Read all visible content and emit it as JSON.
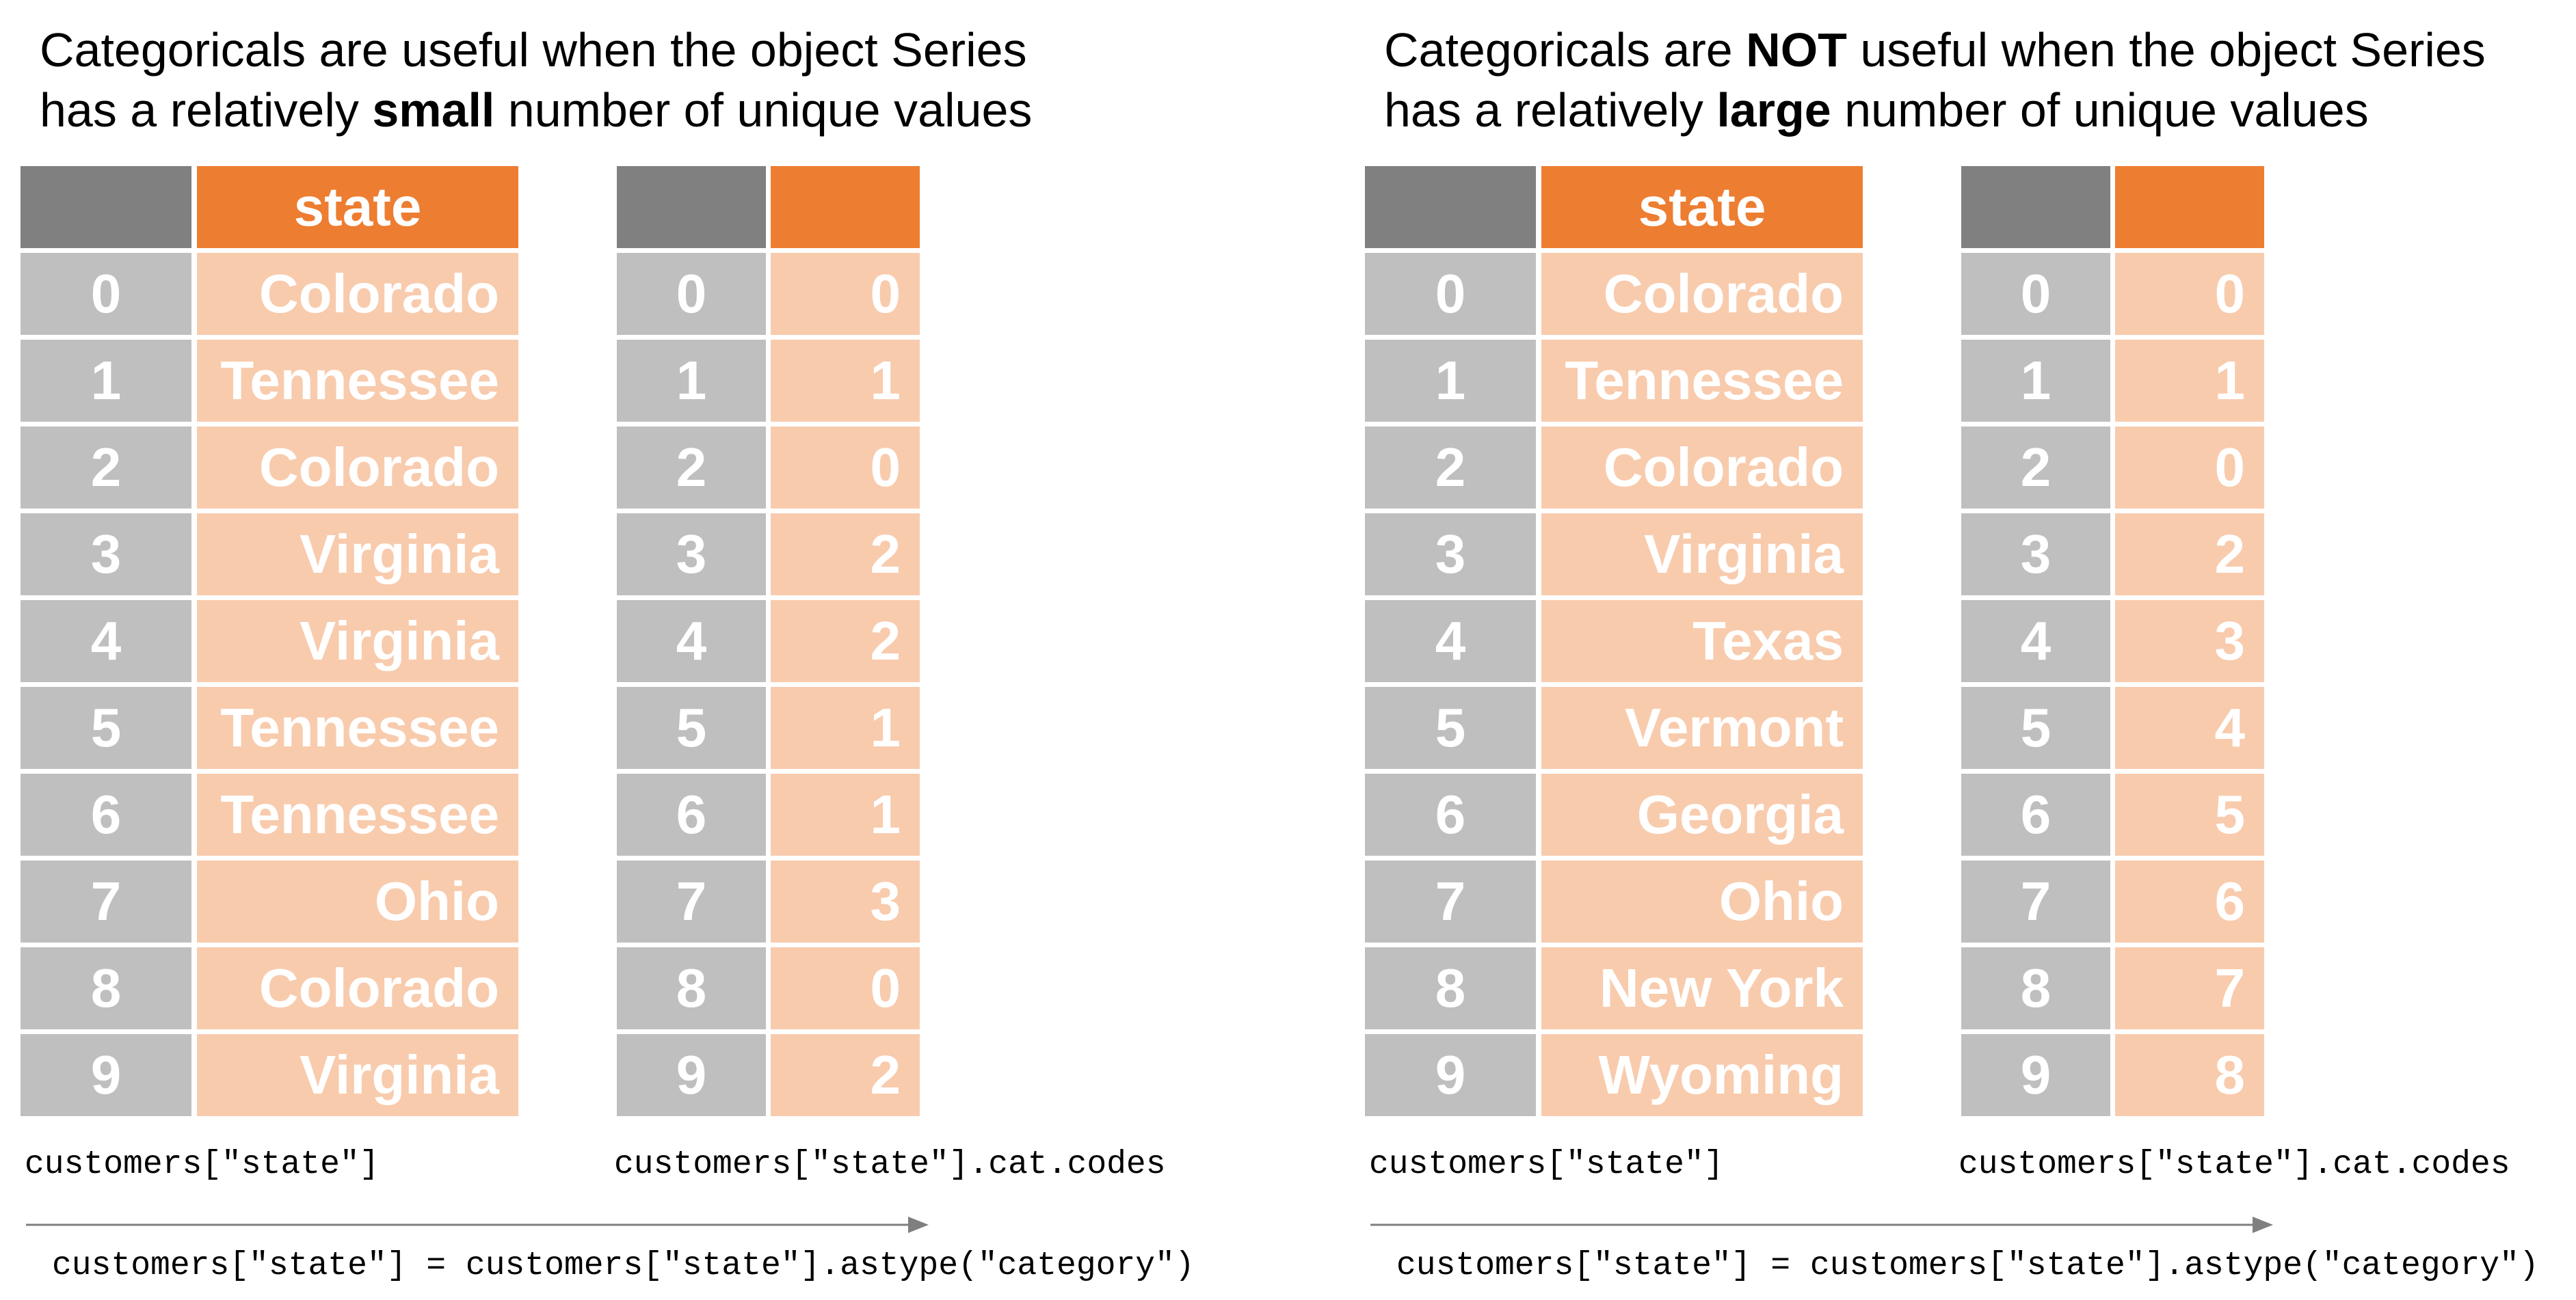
{
  "panels": [
    {
      "title_line1": "Categoricals are useful when the object Series",
      "title_line2_before": "has a relatively ",
      "title_line2_bold": "small",
      "title_line2_after": " number of unique values",
      "column_header": "state",
      "index": [
        "0",
        "1",
        "2",
        "3",
        "4",
        "5",
        "6",
        "7",
        "8",
        "9"
      ],
      "states": [
        "Colorado",
        "Tennessee",
        "Colorado",
        "Virginia",
        "Virginia",
        "Tennessee",
        "Tennessee",
        "Ohio",
        "Colorado",
        "Virginia"
      ],
      "codes": [
        "0",
        "1",
        "0",
        "2",
        "2",
        "1",
        "1",
        "3",
        "0",
        "2"
      ],
      "left_label": "customers[\"state\"]",
      "right_label": "customers[\"state\"].cat.codes",
      "conversion": "customers[\"state\"] = customers[\"state\"].astype(\"category\")"
    },
    {
      "title_line1_before": "Categoricals are ",
      "title_line1_bold": "NOT",
      "title_line1_after": " useful when the object Series",
      "title_line2_before": "has a relatively ",
      "title_line2_bold": "large",
      "title_line2_after": " number of unique values",
      "column_header": "state",
      "index": [
        "0",
        "1",
        "2",
        "3",
        "4",
        "5",
        "6",
        "7",
        "8",
        "9"
      ],
      "states": [
        "Colorado",
        "Tennessee",
        "Colorado",
        "Virginia",
        "Texas",
        "Vermont",
        "Georgia",
        "Ohio",
        "New York",
        "Wyoming"
      ],
      "codes": [
        "0",
        "1",
        "0",
        "2",
        "3",
        "4",
        "5",
        "6",
        "7",
        "8"
      ],
      "left_label": "customers[\"state\"]",
      "right_label": "customers[\"state\"].cat.codes",
      "conversion": "customers[\"state\"] = customers[\"state\"].astype(\"category\")"
    }
  ],
  "colors": {
    "header_gray": "#808080",
    "header_orange": "#ED7D31",
    "index_gray": "#BFBFBF",
    "value_peach": "#F8CBAD",
    "arrow": "#7F7F7F"
  }
}
